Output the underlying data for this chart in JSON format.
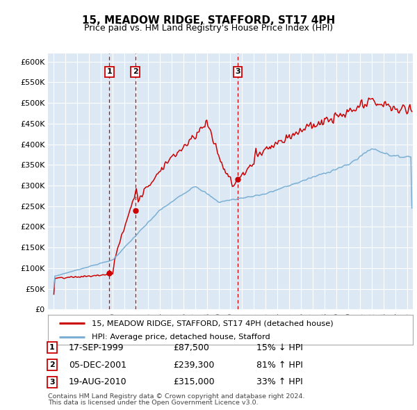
{
  "title": "15, MEADOW RIDGE, STAFFORD, ST17 4PH",
  "subtitle": "Price paid vs. HM Land Registry's House Price Index (HPI)",
  "legend_line1": "15, MEADOW RIDGE, STAFFORD, ST17 4PH (detached house)",
  "legend_line2": "HPI: Average price, detached house, Stafford",
  "footnote1": "Contains HM Land Registry data © Crown copyright and database right 2024.",
  "footnote2": "This data is licensed under the Open Government Licence v3.0.",
  "transactions": [
    {
      "num": 1,
      "date": "17-SEP-1999",
      "price": 87500,
      "pct": "15%",
      "dir": "↓",
      "year": 1999.72
    },
    {
      "num": 2,
      "date": "05-DEC-2001",
      "price": 239300,
      "pct": "81%",
      "dir": "↑",
      "year": 2001.92
    },
    {
      "num": 3,
      "date": "19-AUG-2010",
      "price": 315000,
      "pct": "33%",
      "dir": "↑",
      "year": 2010.63
    }
  ],
  "hpi_color": "#7bafd4",
  "price_color": "#cc0000",
  "vline_color": "#cc0000",
  "background_color": "#dce9f5",
  "ylim": [
    0,
    620000
  ],
  "xlim_start": 1994.5,
  "xlim_end": 2025.5,
  "yticks": [
    0,
    50000,
    100000,
    150000,
    200000,
    250000,
    300000,
    350000,
    400000,
    450000,
    500000,
    550000,
    600000
  ]
}
